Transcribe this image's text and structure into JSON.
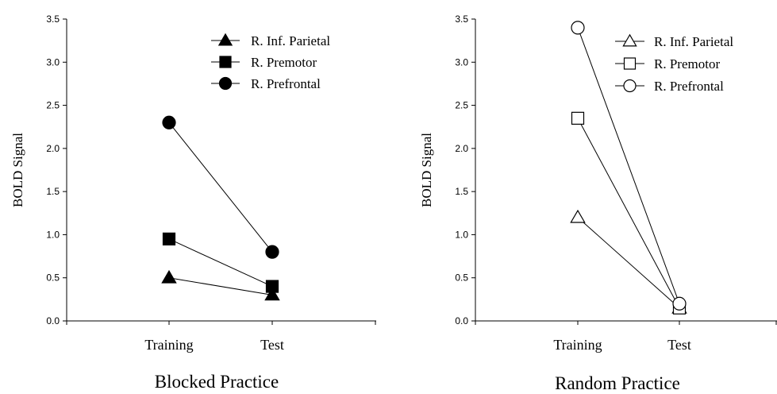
{
  "chart_data": [
    {
      "type": "line",
      "title": "Blocked Practice",
      "xlabel": "",
      "ylabel": "BOLD Signal",
      "categories": [
        "Training",
        "Test"
      ],
      "ylim": [
        0,
        3.5
      ],
      "yticks": [
        "0.0",
        "0.5",
        "1.0",
        "1.5",
        "2.0",
        "2.5",
        "3.0",
        "3.5"
      ],
      "grid": false,
      "legend_position": "top-right",
      "marker_fill": "filled",
      "series": [
        {
          "name": "R. Inf. Parietal",
          "marker": "triangle",
          "values": [
            0.5,
            0.3
          ]
        },
        {
          "name": "R. Premotor",
          "marker": "square",
          "values": [
            0.95,
            0.4
          ]
        },
        {
          "name": "R. Prefrontal",
          "marker": "circle",
          "values": [
            2.3,
            0.8
          ]
        }
      ]
    },
    {
      "type": "line",
      "title": "Random Practice",
      "xlabel": "",
      "ylabel": "BOLD Signal",
      "categories": [
        "Training",
        "Test"
      ],
      "ylim": [
        0,
        3.5
      ],
      "yticks": [
        "0.0",
        "0.5",
        "1.0",
        "1.5",
        "2.0",
        "2.5",
        "3.0",
        "3.5"
      ],
      "grid": false,
      "legend_position": "top-right",
      "marker_fill": "open",
      "series": [
        {
          "name": "R. Inf. Parietal",
          "marker": "triangle",
          "values": [
            1.2,
            0.15
          ]
        },
        {
          "name": "R. Premotor",
          "marker": "square",
          "values": [
            2.35,
            0.15
          ]
        },
        {
          "name": "R. Prefrontal",
          "marker": "circle",
          "values": [
            3.4,
            0.2
          ]
        }
      ]
    }
  ],
  "colors": {
    "ink": "#000000",
    "background": "#ffffff"
  }
}
